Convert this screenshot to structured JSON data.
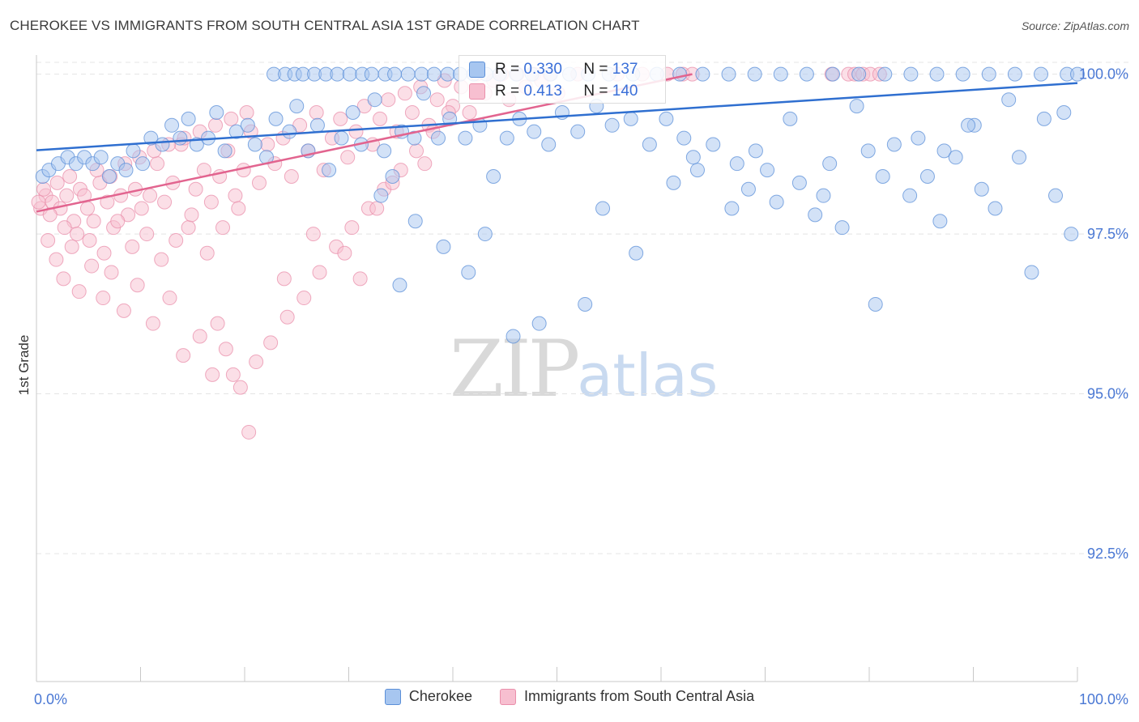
{
  "title": "CHEROKEE VS IMMIGRANTS FROM SOUTH CENTRAL ASIA 1ST GRADE CORRELATION CHART",
  "source": "Source: ZipAtlas.com",
  "watermark": {
    "zip": "ZIP",
    "atlas": "atlas"
  },
  "stats": {
    "cherokee": {
      "r_label": "R =",
      "r_value": "0.330",
      "n_label": "N =",
      "n_value": "137"
    },
    "immigrants": {
      "r_label": "R =",
      "r_value": "0.413",
      "n_label": "N =",
      "n_value": "140"
    }
  },
  "legend": {
    "cherokee": "Cherokee",
    "immigrants": "Immigrants from South Central Asia"
  },
  "colors": {
    "cherokee_fill": "#a7c6f0",
    "cherokee_stroke": "#5b8fd8",
    "cherokee_line": "#2f6fd0",
    "immigrants_fill": "#f7bfd0",
    "immigrants_stroke": "#ea8fab",
    "immigrants_line": "#e2648f",
    "tick_label": "#4a78d4",
    "grid": "#e4e4e4"
  },
  "chart_data": {
    "type": "scatter",
    "title": "CHEROKEE VS IMMIGRANTS FROM SOUTH CENTRAL ASIA 1ST GRADE CORRELATION CHART",
    "xlabel": "",
    "ylabel": "1st Grade",
    "xlim": [
      0,
      100
    ],
    "ylim": [
      90.5,
      100.4
    ],
    "x_tick_labels": [
      "0.0%",
      "100.0%"
    ],
    "y_ticks": [
      92.5,
      95.0,
      97.5,
      100.0
    ],
    "y_tick_labels": [
      "92.5%",
      "95.0%",
      "97.5%",
      "100.0%"
    ],
    "grid": true,
    "series": [
      {
        "name": "Cherokee",
        "trend": {
          "x": [
            0,
            100
          ],
          "y": [
            98.81,
            99.86
          ]
        },
        "points": [
          [
            0.6,
            98.4
          ],
          [
            1.2,
            98.5
          ],
          [
            2.1,
            98.6
          ],
          [
            3,
            98.7
          ],
          [
            3.8,
            98.6
          ],
          [
            4.6,
            98.7
          ],
          [
            5.4,
            98.6
          ],
          [
            6.2,
            98.7
          ],
          [
            7,
            98.4
          ],
          [
            7.8,
            98.6
          ],
          [
            8.6,
            98.5
          ],
          [
            9.3,
            98.8
          ],
          [
            10.2,
            98.6
          ],
          [
            11,
            99
          ],
          [
            12.1,
            98.9
          ],
          [
            13,
            99.2
          ],
          [
            13.8,
            99
          ],
          [
            14.6,
            99.3
          ],
          [
            15.4,
            98.9
          ],
          [
            16.5,
            99
          ],
          [
            17.3,
            99.4
          ],
          [
            18.1,
            98.8
          ],
          [
            19.2,
            99.1
          ],
          [
            20.3,
            99.2
          ],
          [
            21,
            98.9
          ],
          [
            22.1,
            98.7
          ],
          [
            23,
            99.3
          ],
          [
            24.3,
            99.1
          ],
          [
            25,
            99.5
          ],
          [
            26.1,
            98.8
          ],
          [
            27,
            99.2
          ],
          [
            28.1,
            98.5
          ],
          [
            29.3,
            99
          ],
          [
            30.4,
            99.4
          ],
          [
            31.2,
            98.9
          ],
          [
            32.5,
            99.6
          ],
          [
            33.4,
            98.8
          ],
          [
            34.2,
            98.4
          ],
          [
            35.1,
            99.1
          ],
          [
            36.3,
            99
          ],
          [
            37.2,
            99.7
          ],
          [
            38.6,
            99
          ],
          [
            39.7,
            99.3
          ],
          [
            41.2,
            99
          ],
          [
            42.6,
            99.2
          ],
          [
            43.9,
            98.4
          ],
          [
            45.2,
            99
          ],
          [
            46.4,
            99.3
          ],
          [
            47.8,
            99.1
          ],
          [
            49.2,
            98.9
          ],
          [
            50.5,
            99.4
          ],
          [
            52,
            99.1
          ],
          [
            53.8,
            99.5
          ],
          [
            55.3,
            99.2
          ],
          [
            57.1,
            99.3
          ],
          [
            58.9,
            98.9
          ],
          [
            61.2,
            98.3
          ],
          [
            63.5,
            98.5
          ],
          [
            66.8,
            97.9
          ],
          [
            69.1,
            98.8
          ],
          [
            72.4,
            99.3
          ],
          [
            75.6,
            98.1
          ],
          [
            78.8,
            99.5
          ],
          [
            81.3,
            98.4
          ],
          [
            84.7,
            99
          ],
          [
            87.2,
            98.8
          ],
          [
            90.1,
            99.2
          ],
          [
            93.4,
            99.6
          ],
          [
            22.8,
            100
          ],
          [
            23.9,
            100
          ],
          [
            24.8,
            100
          ],
          [
            25.6,
            100
          ],
          [
            26.7,
            100
          ],
          [
            27.8,
            100
          ],
          [
            28.9,
            100
          ],
          [
            30.1,
            100
          ],
          [
            31.3,
            100
          ],
          [
            32.2,
            100
          ],
          [
            33.5,
            100
          ],
          [
            34.4,
            100
          ],
          [
            35.7,
            100
          ],
          [
            37,
            100
          ],
          [
            38.2,
            100
          ],
          [
            39.5,
            100
          ],
          [
            40.7,
            100
          ],
          [
            42,
            100
          ],
          [
            43.2,
            100
          ],
          [
            44.5,
            100
          ],
          [
            46.1,
            100
          ],
          [
            47.6,
            100
          ],
          [
            49.4,
            100
          ],
          [
            51.2,
            100
          ],
          [
            53,
            100
          ],
          [
            55,
            100
          ],
          [
            57.3,
            100
          ],
          [
            59.6,
            100
          ],
          [
            61.8,
            100
          ],
          [
            64,
            100
          ],
          [
            66.5,
            100
          ],
          [
            69,
            100
          ],
          [
            71.5,
            100
          ],
          [
            74,
            100
          ],
          [
            76.5,
            100
          ],
          [
            79,
            100
          ],
          [
            81.5,
            100
          ],
          [
            84,
            100
          ],
          [
            86.5,
            100
          ],
          [
            89,
            100
          ],
          [
            91.5,
            100
          ],
          [
            94,
            100
          ],
          [
            96.5,
            100
          ],
          [
            99,
            100
          ],
          [
            100,
            100
          ],
          [
            60.5,
            99.3
          ],
          [
            62.2,
            99
          ],
          [
            63.1,
            98.7
          ],
          [
            65,
            98.9
          ],
          [
            67.3,
            98.6
          ],
          [
            68.4,
            98.2
          ],
          [
            70.2,
            98.5
          ],
          [
            71.1,
            98
          ],
          [
            73.3,
            98.3
          ],
          [
            74.8,
            97.8
          ],
          [
            76.2,
            98.6
          ],
          [
            77.4,
            97.6
          ],
          [
            79.9,
            98.8
          ],
          [
            80.6,
            96.4
          ],
          [
            82.4,
            98.9
          ],
          [
            83.9,
            98.1
          ],
          [
            85.6,
            98.4
          ],
          [
            86.8,
            97.7
          ],
          [
            88.3,
            98.7
          ],
          [
            89.5,
            99.2
          ],
          [
            90.8,
            98.2
          ],
          [
            92.1,
            97.9
          ],
          [
            94.4,
            98.7
          ],
          [
            95.6,
            96.9
          ],
          [
            96.8,
            99.3
          ],
          [
            97.9,
            98.1
          ],
          [
            98.7,
            99.4
          ],
          [
            99.4,
            97.5
          ],
          [
            57.6,
            97.2
          ],
          [
            54.4,
            97.9
          ],
          [
            52.7,
            96.4
          ],
          [
            48.3,
            96.1
          ],
          [
            45.8,
            95.9
          ],
          [
            43.1,
            97.5
          ],
          [
            41.5,
            96.9
          ],
          [
            39.1,
            97.3
          ],
          [
            36.4,
            97.7
          ],
          [
            34.9,
            96.7
          ],
          [
            33.1,
            98.1
          ]
        ]
      },
      {
        "name": "Immigrants from South Central Asia",
        "trend": {
          "x": [
            0,
            63
          ],
          "y": [
            97.85,
            100.0
          ]
        },
        "points": [
          [
            0.4,
            97.9
          ],
          [
            0.9,
            98.1
          ],
          [
            1.5,
            98
          ],
          [
            2.3,
            97.9
          ],
          [
            2.9,
            98.1
          ],
          [
            3.6,
            97.7
          ],
          [
            4.2,
            98.2
          ],
          [
            4.9,
            97.9
          ],
          [
            5.5,
            97.7
          ],
          [
            6.1,
            98.3
          ],
          [
            6.8,
            98
          ],
          [
            7.4,
            97.6
          ],
          [
            8.1,
            98.1
          ],
          [
            8.8,
            97.8
          ],
          [
            9.5,
            98.2
          ],
          [
            10.1,
            97.9
          ],
          [
            10.9,
            98.1
          ],
          [
            11.6,
            98.6
          ],
          [
            12.3,
            98
          ],
          [
            13.1,
            98.3
          ],
          [
            13.9,
            98.9
          ],
          [
            14.6,
            97.6
          ],
          [
            15.3,
            98.2
          ],
          [
            16.1,
            98.5
          ],
          [
            16.8,
            98
          ],
          [
            17.6,
            98.4
          ],
          [
            18.4,
            98.8
          ],
          [
            19.1,
            98.1
          ],
          [
            19.9,
            98.5
          ],
          [
            20.6,
            99.1
          ],
          [
            21.4,
            98.3
          ],
          [
            22.2,
            98.9
          ],
          [
            22.9,
            98.6
          ],
          [
            23.7,
            99
          ],
          [
            24.5,
            98.4
          ],
          [
            25.3,
            99.2
          ],
          [
            26.1,
            98.8
          ],
          [
            26.9,
            99.4
          ],
          [
            27.6,
            98.5
          ],
          [
            28.4,
            99
          ],
          [
            29.2,
            99.3
          ],
          [
            29.9,
            98.7
          ],
          [
            30.7,
            99.1
          ],
          [
            31.5,
            99.5
          ],
          [
            32.3,
            98.9
          ],
          [
            33,
            99.3
          ],
          [
            33.8,
            99.6
          ],
          [
            34.6,
            99.1
          ],
          [
            35.4,
            99.7
          ],
          [
            36.1,
            99.4
          ],
          [
            36.9,
            99.8
          ],
          [
            37.7,
            99.2
          ],
          [
            38.5,
            99.6
          ],
          [
            39.2,
            99.9
          ],
          [
            40,
            99.5
          ],
          [
            40.8,
            99.8
          ],
          [
            41.6,
            99.4
          ],
          [
            42.3,
            100
          ],
          [
            43.1,
            99.7
          ],
          [
            43.9,
            99.9
          ],
          [
            44.7,
            100
          ],
          [
            45.4,
            99.6
          ],
          [
            46.2,
            100
          ],
          [
            47,
            99.8
          ],
          [
            47.8,
            100
          ],
          [
            48.5,
            99.9
          ],
          [
            49.3,
            100
          ],
          [
            50.1,
            99.7
          ],
          [
            52,
            100
          ],
          [
            55.8,
            100
          ],
          [
            58.2,
            100
          ],
          [
            60.6,
            100
          ],
          [
            62.1,
            100
          ],
          [
            63,
            100
          ],
          [
            78,
            100
          ],
          [
            78.6,
            100
          ],
          [
            79.4,
            100
          ],
          [
            80.1,
            100
          ],
          [
            81,
            100
          ],
          [
            76.4,
            100
          ],
          [
            1.1,
            97.4
          ],
          [
            1.9,
            97.1
          ],
          [
            2.6,
            96.8
          ],
          [
            3.4,
            97.3
          ],
          [
            4.1,
            96.6
          ],
          [
            5.3,
            97
          ],
          [
            6.4,
            96.5
          ],
          [
            7.2,
            96.9
          ],
          [
            8.4,
            96.3
          ],
          [
            9.7,
            96.7
          ],
          [
            11.2,
            96.1
          ],
          [
            12.8,
            96.5
          ],
          [
            14.1,
            95.6
          ],
          [
            15.7,
            95.9
          ],
          [
            16.9,
            95.3
          ],
          [
            18.2,
            95.7
          ],
          [
            19.6,
            95.1
          ],
          [
            21.1,
            95.5
          ],
          [
            22.5,
            95.8
          ],
          [
            24.1,
            96.2
          ],
          [
            25.7,
            96.5
          ],
          [
            27.2,
            96.9
          ],
          [
            28.8,
            97.3
          ],
          [
            30.3,
            97.6
          ],
          [
            31.9,
            97.9
          ],
          [
            33.4,
            98.2
          ],
          [
            35,
            98.5
          ],
          [
            36.5,
            98.8
          ],
          [
            38.1,
            99.1
          ],
          [
            39.6,
            99.4
          ],
          [
            17.4,
            96.1
          ],
          [
            18.9,
            95.3
          ],
          [
            20.4,
            94.4
          ],
          [
            23.8,
            96.8
          ],
          [
            26.6,
            97.5
          ],
          [
            29.6,
            97.2
          ],
          [
            31.1,
            96.8
          ],
          [
            32.7,
            97.9
          ],
          [
            34.2,
            98.3
          ],
          [
            37.3,
            98.6
          ],
          [
            0.2,
            98
          ],
          [
            0.7,
            98.2
          ],
          [
            1.3,
            97.8
          ],
          [
            2,
            98.3
          ],
          [
            2.7,
            97.6
          ],
          [
            3.2,
            98.4
          ],
          [
            3.9,
            97.5
          ],
          [
            4.6,
            98.1
          ],
          [
            5.1,
            97.4
          ],
          [
            5.8,
            98.5
          ],
          [
            6.5,
            97.2
          ],
          [
            7.1,
            98.4
          ],
          [
            7.8,
            97.7
          ],
          [
            8.5,
            98.6
          ],
          [
            9.2,
            97.3
          ],
          [
            9.9,
            98.7
          ],
          [
            10.6,
            97.5
          ],
          [
            11.3,
            98.8
          ],
          [
            12,
            97.1
          ],
          [
            12.7,
            98.9
          ],
          [
            13.4,
            97.4
          ],
          [
            14.2,
            99
          ],
          [
            14.9,
            97.8
          ],
          [
            15.7,
            99.1
          ],
          [
            16.4,
            97.2
          ],
          [
            17.2,
            99.2
          ],
          [
            17.9,
            97.6
          ],
          [
            18.7,
            99.3
          ],
          [
            19.4,
            97.9
          ],
          [
            20.2,
            99.4
          ]
        ]
      }
    ]
  }
}
